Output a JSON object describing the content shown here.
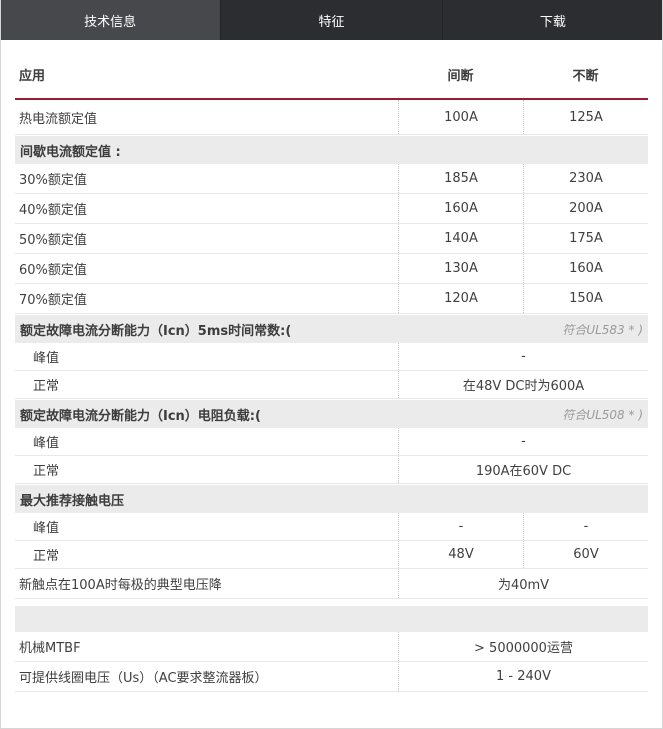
{
  "tabs": {
    "technical": "技术信息",
    "features": "特征",
    "downloads": "下载"
  },
  "header": {
    "application": "应用",
    "intermittent": "间断",
    "continuous": "不断"
  },
  "sections": {
    "intermittent_rating": {
      "title": "间歇电流额定值 :"
    },
    "icn_5ms": {
      "title": "额定故障电流分断能力（Icn）5ms时间常数:(",
      "note": "符合UL583 * )"
    },
    "icn_resistive": {
      "title": "额定故障电流分断能力（Icn）电阻负载:(",
      "note": "符合UL508 * )"
    },
    "contact_voltage": {
      "title": "最大推荐接触电压"
    },
    "misc": {
      "title": ""
    }
  },
  "rows": {
    "thermal": {
      "label": "热电流额定值",
      "v1": "100A",
      "v2": "125A"
    },
    "r30": {
      "label": "30%额定值",
      "v1": "185A",
      "v2": "230A"
    },
    "r40": {
      "label": "40%额定值",
      "v1": "160A",
      "v2": "200A"
    },
    "r50": {
      "label": "50%额定值",
      "v1": "140A",
      "v2": "175A"
    },
    "r60": {
      "label": "60%额定值",
      "v1": "130A",
      "v2": "160A"
    },
    "r70": {
      "label": "70%额定值",
      "v1": "120A",
      "v2": "150A"
    },
    "icn5ms_peak": {
      "label": "峰值",
      "value": "-"
    },
    "icn5ms_normal": {
      "label": "正常",
      "value": "在48V DC时为600A"
    },
    "icnres_peak": {
      "label": "峰值",
      "value": "-"
    },
    "icnres_normal": {
      "label": "正常",
      "value": "190A在60V DC"
    },
    "contact_peak": {
      "label": "峰值",
      "v1": "-",
      "v2": "-"
    },
    "contact_normal": {
      "label": "正常",
      "v1": "48V",
      "v2": "60V"
    },
    "voltage_drop": {
      "label": "新触点在100A时每极的典型电压降",
      "value": "为40mV"
    },
    "mtbf": {
      "label": "机械MTBF",
      "value": "> 5000000运营"
    },
    "coil_voltage": {
      "label": "可提供线圈电压（Us）（AC要求整流器板）",
      "value": "1 - 240V"
    }
  },
  "colors": {
    "accent_rule": "#9a1b34",
    "tab_active_bg": "#46484c",
    "tab_bg": "#2b2d30",
    "band_bg": "#ebebeb",
    "note_text": "#9b9b9b"
  }
}
